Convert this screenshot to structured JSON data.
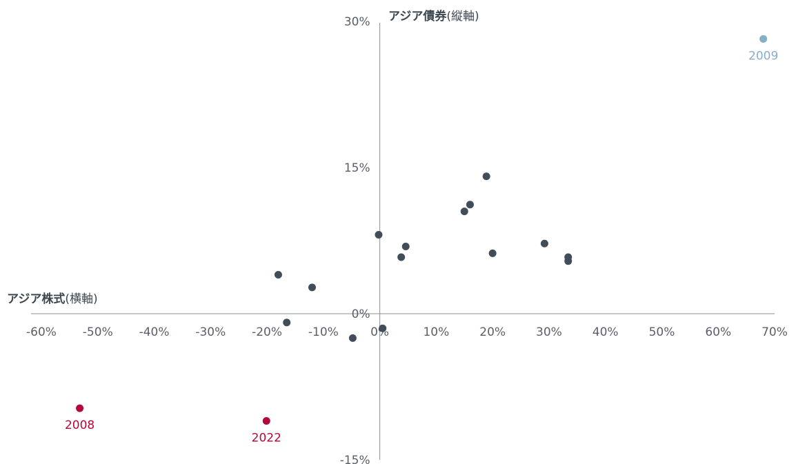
{
  "chart_data": {
    "type": "scatter",
    "xlabel": "アジア株式",
    "xlabel_suffix": "(横軸)",
    "ylabel": "アジア債券",
    "ylabel_suffix": "(縦軸)",
    "xlim": [
      -60,
      70
    ],
    "ylim": [
      -15,
      30
    ],
    "x_ticks": [
      -60,
      -50,
      -40,
      -30,
      -20,
      -10,
      0,
      10,
      20,
      30,
      40,
      50,
      60,
      70
    ],
    "x_tick_labels": [
      "-60%",
      "-50%",
      "-40%",
      "-30%",
      "-20%",
      "-10%",
      "0%",
      "10%",
      "20%",
      "30%",
      "40%",
      "50%",
      "60%",
      "70%"
    ],
    "y_ticks": [
      -15,
      0,
      15,
      30
    ],
    "y_tick_labels": [
      "-15%",
      "0%",
      "15%",
      "30%"
    ],
    "grid": false,
    "colors": {
      "default": "#414d59",
      "highlight_red": "#b5083a",
      "highlight_blue": "#86aec6",
      "axis": "#8a8f94",
      "text": "#5a6068"
    },
    "points": [
      {
        "x": -53.2,
        "y": -9.7,
        "label": "2008",
        "color": "#b5083a"
      },
      {
        "x": 68.0,
        "y": 28.2,
        "label": "2009",
        "color": "#86aec6"
      },
      {
        "x": -20.1,
        "y": -11.0,
        "label": "2022",
        "color": "#b5083a"
      },
      {
        "x": -18.0,
        "y": 4.0
      },
      {
        "x": -12.0,
        "y": 2.7
      },
      {
        "x": -16.5,
        "y": -0.9
      },
      {
        "x": -4.8,
        "y": -2.5
      },
      {
        "x": -0.2,
        "y": 8.1
      },
      {
        "x": 0.5,
        "y": -1.5
      },
      {
        "x": 3.8,
        "y": 5.8
      },
      {
        "x": 4.6,
        "y": 6.9
      },
      {
        "x": 15.0,
        "y": 10.5
      },
      {
        "x": 16.0,
        "y": 11.2
      },
      {
        "x": 18.9,
        "y": 14.1
      },
      {
        "x": 20.0,
        "y": 6.2
      },
      {
        "x": 29.2,
        "y": 7.2
      },
      {
        "x": 33.4,
        "y": 5.8
      },
      {
        "x": 33.4,
        "y": 5.4
      }
    ]
  }
}
